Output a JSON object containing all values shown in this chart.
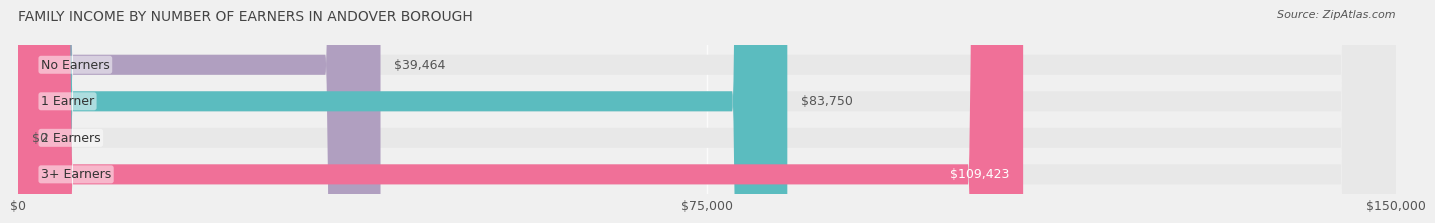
{
  "title": "FAMILY INCOME BY NUMBER OF EARNERS IN ANDOVER BOROUGH",
  "source": "Source: ZipAtlas.com",
  "categories": [
    "No Earners",
    "1 Earner",
    "2 Earners",
    "3+ Earners"
  ],
  "values": [
    39464,
    83750,
    0,
    109423
  ],
  "bar_colors": [
    "#b09fc0",
    "#5bbcbf",
    "#a0a8d8",
    "#f07098"
  ],
  "label_colors": [
    "#555555",
    "#555555",
    "#555555",
    "#ffffff"
  ],
  "value_labels": [
    "$39,464",
    "$83,750",
    "$0",
    "$109,423"
  ],
  "xlim": [
    0,
    150000
  ],
  "xticks": [
    0,
    75000,
    150000
  ],
  "xtick_labels": [
    "$0",
    "$75,000",
    "$150,000"
  ],
  "bar_height": 0.55,
  "background_color": "#f0f0f0",
  "bar_bg_color": "#e8e8e8",
  "title_fontsize": 10,
  "label_fontsize": 9,
  "value_fontsize": 9,
  "source_fontsize": 8
}
